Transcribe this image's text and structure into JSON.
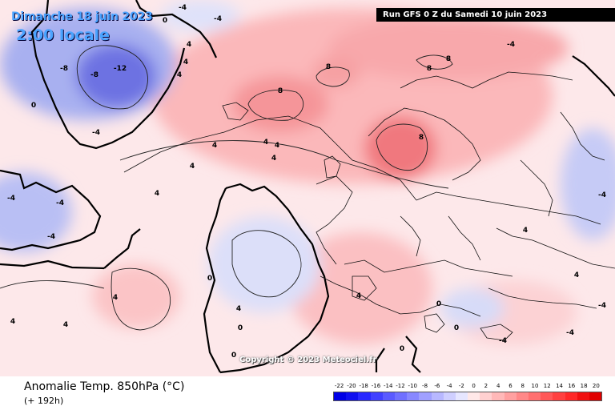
{
  "header": {
    "date": "Dimanche 18 juin 2023",
    "time": "2:00 locale",
    "run": "Run GFS 0 Z du Samedi 10 juin 2023"
  },
  "footer": {
    "variable": "Anomalie Temp. 850hPa (°C)",
    "lead_time": "(+ 192h)",
    "copyright": "Copyright © 2023 Meteociel.fr"
  },
  "legend": {
    "ticks": [
      "-22",
      "-20",
      "-18",
      "-16",
      "-14",
      "-12",
      "-10",
      "-8",
      "-6",
      "-4",
      "-2",
      "0",
      "2",
      "4",
      "6",
      "8",
      "10",
      "12",
      "14",
      "16",
      "18",
      "20"
    ],
    "colors": [
      "#0000e6",
      "#1010f0",
      "#2828ff",
      "#4040ff",
      "#5a5aff",
      "#7070ff",
      "#8888ff",
      "#a0a0ff",
      "#b8b8ff",
      "#cfcfff",
      "#e6e6ff",
      "#ffe8e8",
      "#ffd0d0",
      "#ffb8b8",
      "#ffa0a0",
      "#ff8888",
      "#ff7070",
      "#ff5858",
      "#ff4040",
      "#ff2828",
      "#f01010",
      "#e00000"
    ]
  },
  "map_labels": [
    "-4",
    "0",
    "-4",
    "-8",
    "-12",
    "-4",
    "-8",
    "0",
    "-4",
    "4",
    "4",
    "4",
    "8",
    "8",
    "8",
    "8",
    "8",
    "4",
    "4",
    "4",
    "4",
    "4",
    "4",
    "-4",
    "-4",
    "0",
    "4",
    "4",
    "0",
    "0",
    "-4",
    "4",
    "4",
    "-4",
    "-4",
    "-4",
    "4",
    "0",
    "0",
    "0",
    "4",
    "4",
    "-4"
  ]
}
